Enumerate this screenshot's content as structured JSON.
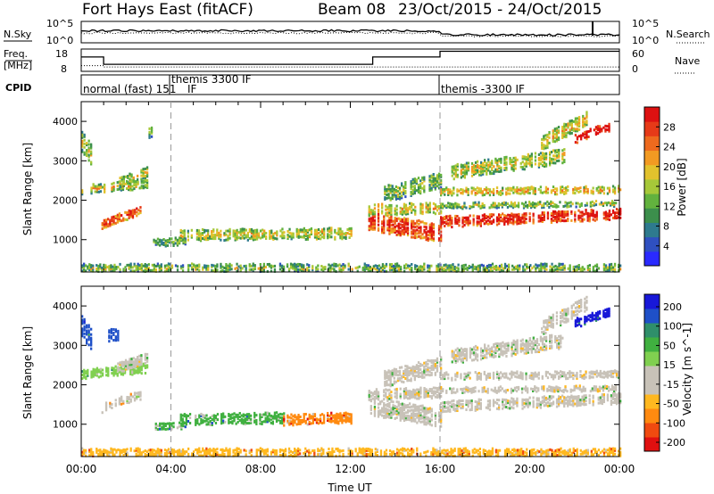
{
  "header": {
    "station": "Fort Hays East (fitACF)",
    "beam": "Beam 08",
    "dates": "23/Oct/2015 - 24/Oct/2015"
  },
  "colors": {
    "power_scale": [
      "#2a2aff",
      "#2f50c0",
      "#2e7a8e",
      "#3c8f4c",
      "#62b23e",
      "#a6c839",
      "#e2c22d",
      "#f29a22",
      "#ee6a1e",
      "#e63a18",
      "#dd1111"
    ],
    "velocity_scale": [
      "#e01010",
      "#f04a10",
      "#ff8a10",
      "#ffb820",
      "#c8c2b8",
      "#c8c2b8",
      "#80d050",
      "#40b040",
      "#2f8f6a",
      "#1f50c8",
      "#1818d8"
    ]
  },
  "chart_data": [
    {
      "panel": "noise",
      "type": "line",
      "left_labels": [
        "N.Sky",
        "10^5",
        "10^0"
      ],
      "right_labels": [
        "N.Search",
        "10^5",
        "10^0"
      ]
    },
    {
      "panel": "frequency",
      "type": "line",
      "left_title": [
        "Freq.",
        "[MHz]"
      ],
      "left_ticks": [
        "18",
        "8"
      ],
      "right_title": "Nave",
      "right_ticks": [
        "60",
        "0"
      ],
      "freq_steps": [
        {
          "x0": 0,
          "x1": 1.0,
          "y": 14.4
        },
        {
          "x0": 1.0,
          "x1": 13.0,
          "y": 10.7
        },
        {
          "x0": 13.0,
          "x1": 16.0,
          "y": 14.4
        },
        {
          "x0": 16.0,
          "x1": 24.0,
          "y": 17.3
        }
      ],
      "nave_steps": [
        {
          "x0": 0,
          "x1": 1.0,
          "y": 12
        },
        {
          "x0": 1.0,
          "x1": 24.0,
          "y": 8
        }
      ]
    },
    {
      "panel": "cpid",
      "type": "table",
      "label": "CPID",
      "modes": [
        {
          "start": 0,
          "end": 4,
          "text": "normal (fast) 151"
        },
        {
          "start": 4,
          "end": 16,
          "text": "themis 3300 IF"
        },
        {
          "start": 16,
          "end": 24,
          "text": "themis -3300 IF"
        }
      ],
      "extra_text": "IF"
    },
    {
      "panel": "power",
      "type": "heatmap",
      "ylabel": "Slant Range [km]",
      "ylim": [
        180,
        4500
      ],
      "xlim": [
        0,
        24
      ],
      "yticks": [
        1000,
        2000,
        3000,
        4000
      ],
      "colorbar": {
        "label": "Power [dB]",
        "ticks": [
          4,
          8,
          12,
          16,
          20,
          24,
          28
        ],
        "range": [
          0,
          32
        ]
      },
      "echo_bands": [
        {
          "t0": 0.0,
          "t1": 2.9,
          "r_start": 2300,
          "r_end": 2450,
          "width": 180,
          "level": 0.4
        },
        {
          "t0": 0.0,
          "t1": 0.4,
          "r_start": 3500,
          "r_end": 3200,
          "width": 500,
          "level": 0.35
        },
        {
          "t0": 0.9,
          "t1": 2.6,
          "r_start": 1450,
          "r_end": 1800,
          "width": 220,
          "level": 0.7
        },
        {
          "t0": 1.6,
          "t1": 2.9,
          "r_start": 2450,
          "r_end": 2750,
          "width": 250,
          "level": 0.4
        },
        {
          "t0": 3.0,
          "t1": 3.2,
          "r_start": 3750,
          "r_end": 3750,
          "width": 250,
          "level": 0.3
        },
        {
          "t0": 3.2,
          "t1": 4.6,
          "r_start": 950,
          "r_end": 1000,
          "width": 140,
          "level": 0.25
        },
        {
          "t0": 4.4,
          "t1": 12.0,
          "r_start": 1150,
          "r_end": 1200,
          "width": 240,
          "level": 0.4
        },
        {
          "t0": 12.8,
          "t1": 16.0,
          "r_start": 1500,
          "r_end": 1200,
          "width": 420,
          "level": 0.75
        },
        {
          "t0": 12.8,
          "t1": 16.0,
          "r_start": 1800,
          "r_end": 1850,
          "width": 260,
          "level": 0.45
        },
        {
          "t0": 13.5,
          "t1": 16.0,
          "r_start": 2200,
          "r_end": 2550,
          "width": 400,
          "level": 0.3
        },
        {
          "t0": 16.0,
          "t1": 24.0,
          "r_start": 1500,
          "r_end": 1700,
          "width": 260,
          "level": 0.8
        },
        {
          "t0": 16.0,
          "t1": 24.0,
          "r_start": 2250,
          "r_end": 2300,
          "width": 140,
          "level": 0.5
        },
        {
          "t0": 16.0,
          "t1": 23.8,
          "r_start": 1900,
          "r_end": 1950,
          "width": 110,
          "level": 0.35
        },
        {
          "t0": 16.5,
          "t1": 21.5,
          "r_start": 2750,
          "r_end": 3150,
          "width": 320,
          "level": 0.4
        },
        {
          "t0": 20.5,
          "t1": 22.5,
          "r_start": 3500,
          "r_end": 4100,
          "width": 350,
          "level": 0.45
        },
        {
          "t0": 22.0,
          "t1": 23.5,
          "r_start": 3600,
          "r_end": 3900,
          "width": 200,
          "level": 0.85
        },
        {
          "t0": 0.0,
          "t1": 24.0,
          "r_start": 300,
          "r_end": 300,
          "width": 180,
          "level": 0.3
        }
      ]
    },
    {
      "panel": "velocity",
      "type": "heatmap",
      "ylabel": "Slant Range [km]",
      "xlabel": "Time UT",
      "ylim": [
        180,
        4500
      ],
      "xlim": [
        0,
        24
      ],
      "yticks": [
        1000,
        2000,
        3000,
        4000
      ],
      "xticks": [
        0,
        4,
        8,
        12,
        16,
        20,
        24
      ],
      "xtick_labels": [
        "00:00",
        "04:00",
        "08:00",
        "12:00",
        "16:00",
        "20:00",
        "00:00"
      ],
      "colorbar": {
        "label": "Velocity [m s^-1]",
        "ticks": [
          "200",
          "100",
          "50",
          "15",
          "-15",
          "-50",
          "-100",
          "-200"
        ]
      },
      "echo_bands": [
        {
          "t0": 0.0,
          "t1": 2.9,
          "r_start": 2300,
          "r_end": 2450,
          "width": 180,
          "cls": 6
        },
        {
          "t0": 0.0,
          "t1": 0.4,
          "r_start": 3500,
          "r_end": 3200,
          "width": 500,
          "cls": 9
        },
        {
          "t0": 0.9,
          "t1": 2.6,
          "r_start": 1450,
          "r_end": 1800,
          "width": 220,
          "cls": 4
        },
        {
          "t0": 1.6,
          "t1": 2.9,
          "r_start": 2450,
          "r_end": 2750,
          "width": 250,
          "cls": 5
        },
        {
          "t0": 1.2,
          "t1": 1.6,
          "r_start": 3300,
          "r_end": 3300,
          "width": 300,
          "cls": 9
        },
        {
          "t0": 3.2,
          "t1": 4.6,
          "r_start": 950,
          "r_end": 1000,
          "width": 140,
          "cls": 7
        },
        {
          "t0": 4.4,
          "t1": 9.0,
          "r_start": 1150,
          "r_end": 1200,
          "width": 240,
          "cls": 7
        },
        {
          "t0": 9.0,
          "t1": 12.0,
          "r_start": 1150,
          "r_end": 1200,
          "width": 240,
          "cls": 2
        },
        {
          "t0": 12.8,
          "t1": 16.0,
          "r_start": 1500,
          "r_end": 1200,
          "width": 420,
          "cls": 5
        },
        {
          "t0": 12.8,
          "t1": 16.0,
          "r_start": 1800,
          "r_end": 1850,
          "width": 260,
          "cls": 5
        },
        {
          "t0": 13.5,
          "t1": 16.0,
          "r_start": 2200,
          "r_end": 2550,
          "width": 400,
          "cls": 5
        },
        {
          "t0": 16.0,
          "t1": 24.0,
          "r_start": 1500,
          "r_end": 1700,
          "width": 260,
          "cls": 5
        },
        {
          "t0": 16.0,
          "t1": 24.0,
          "r_start": 2250,
          "r_end": 2300,
          "width": 140,
          "cls": 5
        },
        {
          "t0": 16.0,
          "t1": 23.8,
          "r_start": 1900,
          "r_end": 1950,
          "width": 110,
          "cls": 5
        },
        {
          "t0": 16.5,
          "t1": 21.5,
          "r_start": 2750,
          "r_end": 3150,
          "width": 320,
          "cls": 5
        },
        {
          "t0": 20.5,
          "t1": 22.5,
          "r_start": 3500,
          "r_end": 4100,
          "width": 350,
          "cls": 5
        },
        {
          "t0": 22.0,
          "t1": 23.5,
          "r_start": 3600,
          "r_end": 3900,
          "width": 200,
          "cls": 10
        },
        {
          "t0": 0.0,
          "t1": 24.0,
          "r_start": 300,
          "r_end": 300,
          "width": 180,
          "cls": 3
        }
      ]
    }
  ]
}
